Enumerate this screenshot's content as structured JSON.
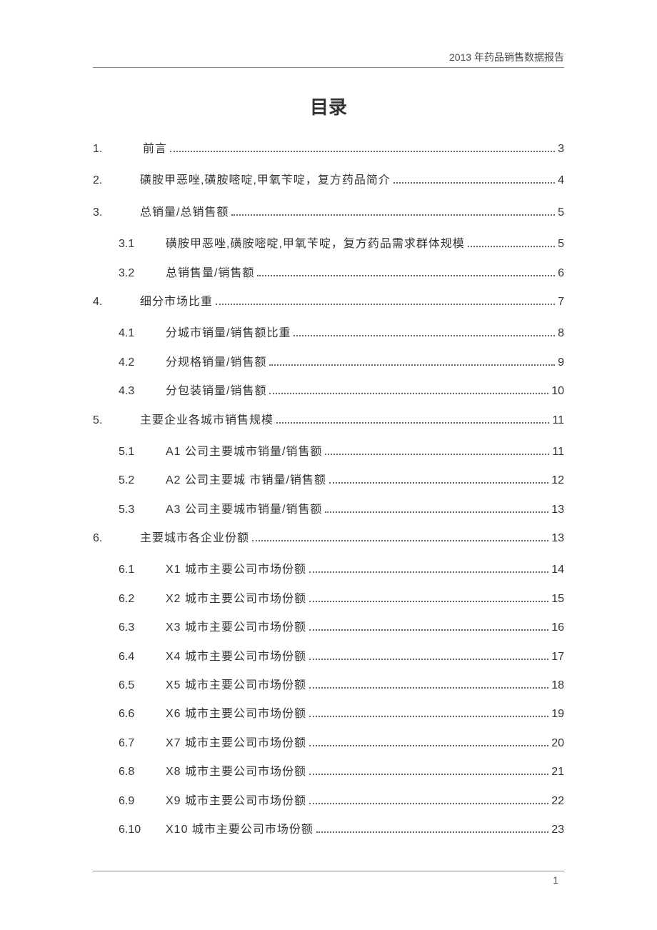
{
  "header_text": "2013 年药品销售数据报告",
  "title": "目录",
  "footer_page": "1",
  "entries": [
    {
      "level": 1,
      "num": "1.",
      "label": "前言",
      "page": "3",
      "label_indent": true
    },
    {
      "level": 1,
      "num": "2.",
      "label": "磺胺甲恶唑,磺胺嘧啶,甲氧苄啶，复方药品简介",
      "page": "4"
    },
    {
      "level": 1,
      "num": "3.",
      "label": "总销量/总销售额",
      "page": "5"
    },
    {
      "level": 2,
      "num": "3.1",
      "label": "磺胺甲恶唑,磺胺嘧啶,甲氧苄啶，复方药品需求群体规模",
      "page": "5"
    },
    {
      "level": 2,
      "num": "3.2",
      "label": "总销售量/销售额",
      "page": "6"
    },
    {
      "level": 1,
      "num": "4.",
      "label": "细分市场比重",
      "page": "7"
    },
    {
      "level": 2,
      "num": "4.1",
      "label": "分城市销量/销售额比重",
      "page": "8"
    },
    {
      "level": 2,
      "num": "4.2",
      "label": "分规格销量/销售额",
      "page": "9"
    },
    {
      "level": 2,
      "num": "4.3",
      "label": "分包装销量/销售额",
      "page": "10"
    },
    {
      "level": 1,
      "num": "5.",
      "label": "主要企业各城市销售规模",
      "page": "11"
    },
    {
      "level": 2,
      "num": "5.1",
      "label": "A1 公司主要城市销量/销售额",
      "page": "11"
    },
    {
      "level": 2,
      "num": "5.2",
      "label": "A2 公司主要城 市销量/销售额",
      "page": "12"
    },
    {
      "level": 2,
      "num": "5.3",
      "label": "A3 公司主要城市销量/销售额",
      "page": "13"
    },
    {
      "level": 1,
      "num": "6.",
      "label": "主要城市各企业份额",
      "page": "13"
    },
    {
      "level": 2,
      "num": "6.1",
      "label": "X1 城市主要公司市场份额",
      "page": "14"
    },
    {
      "level": 2,
      "num": "6.2",
      "label": "X2 城市主要公司市场份额",
      "page": "15"
    },
    {
      "level": 2,
      "num": "6.3",
      "label": "X3 城市主要公司市场份额",
      "page": "16"
    },
    {
      "level": 2,
      "num": "6.4",
      "label": "X4 城市主要公司市场份额",
      "page": "17"
    },
    {
      "level": 2,
      "num": "6.5",
      "label": "X5 城市主要公司市场份额",
      "page": "18"
    },
    {
      "level": 2,
      "num": "6.6",
      "label": "X6 城市主要公司市场份额",
      "page": "19"
    },
    {
      "level": 2,
      "num": "6.7",
      "label": "X7 城市主要公司市场份额",
      "page": "20"
    },
    {
      "level": 2,
      "num": "6.8",
      "label": "X8 城市主要公司市场份额",
      "page": "21"
    },
    {
      "level": 2,
      "num": "6.9",
      "label": "X9 城市主要公司市场份额",
      "page": "22"
    },
    {
      "level": 2,
      "num": "6.10",
      "label": "X10 城市主要公司市场份额",
      "page": "23"
    }
  ]
}
